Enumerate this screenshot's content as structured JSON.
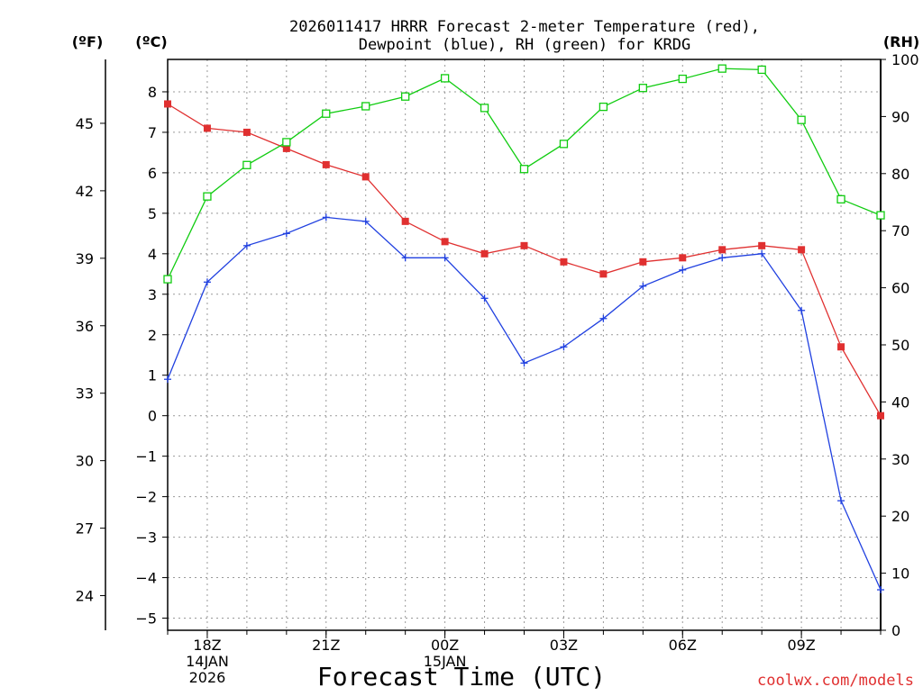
{
  "chart_data": {
    "type": "line",
    "title": "2026011417 HRRR Forecast 2-meter Temperature (red),",
    "subtitle": "Dewpoint (blue), RH (green) for KRDG",
    "xlabel": "Forecast Time (UTC)",
    "credit": "coolwx.com/models",
    "unit_labels": {
      "fahrenheit": "(ºF)",
      "celsius": "(ºC)",
      "rh": "(RH)"
    },
    "x_hours": [
      17,
      18,
      19,
      20,
      21,
      22,
      23,
      24,
      25,
      26,
      27,
      28,
      29,
      30,
      31,
      32,
      33,
      34,
      35
    ],
    "x_ticks": [
      {
        "hour": 18,
        "lines": [
          "18Z",
          "14JAN",
          "2026"
        ]
      },
      {
        "hour": 21,
        "lines": [
          "21Z"
        ]
      },
      {
        "hour": 24,
        "lines": [
          "00Z",
          "15JAN"
        ]
      },
      {
        "hour": 27,
        "lines": [
          "03Z"
        ]
      },
      {
        "hour": 30,
        "lines": [
          "06Z"
        ]
      },
      {
        "hour": 33,
        "lines": [
          "09Z"
        ]
      }
    ],
    "celsius_axis": {
      "min": -5.3,
      "max": 8.8,
      "ticks": [
        -5,
        -4,
        -3,
        -2,
        -1,
        0,
        1,
        2,
        3,
        4,
        5,
        6,
        7,
        8
      ]
    },
    "fahrenheit_ticks": [
      24,
      27,
      30,
      33,
      36,
      39,
      42,
      45
    ],
    "rh_axis": {
      "min": 0,
      "max": 100,
      "ticks": [
        0,
        10,
        20,
        30,
        40,
        50,
        60,
        70,
        80,
        90,
        100
      ]
    },
    "series": [
      {
        "name": "2-meter Temperature",
        "axis": "celsius",
        "color": "#e03030",
        "marker": "filled-square",
        "values": [
          7.7,
          7.1,
          7.0,
          6.6,
          6.2,
          5.9,
          4.8,
          4.3,
          4.0,
          4.2,
          3.8,
          3.5,
          3.8,
          3.9,
          4.1,
          4.2,
          4.1,
          1.7,
          0.0
        ]
      },
      {
        "name": "Dewpoint",
        "axis": "celsius",
        "color": "#2040e0",
        "marker": "plus",
        "values": [
          0.9,
          3.3,
          4.2,
          4.5,
          4.9,
          4.8,
          3.9,
          3.9,
          2.9,
          1.3,
          1.7,
          2.4,
          3.2,
          3.6,
          3.9,
          4.0,
          2.6,
          -2.1,
          -4.3
        ]
      },
      {
        "name": "RH",
        "axis": "rh",
        "color": "#10cc10",
        "marker": "open-square",
        "values": [
          61.5,
          76.0,
          81.5,
          85.5,
          90.5,
          91.8,
          93.5,
          96.7,
          91.5,
          80.8,
          85.2,
          91.7,
          95.0,
          96.6,
          98.4,
          98.2,
          89.4,
          75.5,
          72.7
        ]
      }
    ]
  }
}
